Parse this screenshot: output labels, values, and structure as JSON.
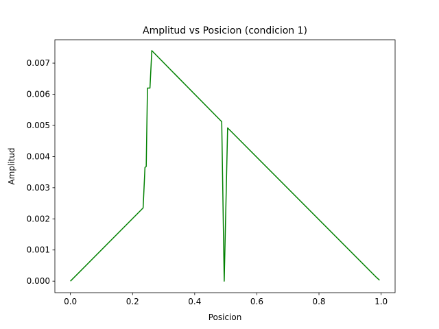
{
  "chart_data": {
    "type": "line",
    "title": "Amplitud vs Posicion  (condicion 1)",
    "xlabel": "Posicion",
    "ylabel": "Amplitud",
    "xlim": [
      -0.05,
      1.045
    ],
    "ylim": [
      -0.00037,
      0.00775
    ],
    "xticks": [
      0.0,
      0.2,
      0.4,
      0.6,
      0.8,
      1.0
    ],
    "xtick_labels": [
      "0.0",
      "0.2",
      "0.4",
      "0.6",
      "0.8",
      "1.0"
    ],
    "yticks": [
      0.0,
      0.001,
      0.002,
      0.003,
      0.004,
      0.005,
      0.006,
      0.007
    ],
    "ytick_labels": [
      "0.000",
      "0.001",
      "0.002",
      "0.003",
      "0.004",
      "0.005",
      "0.006",
      "0.007"
    ],
    "grid": false,
    "series": [
      {
        "color": "#008000",
        "x": [
          0.0,
          0.234,
          0.24,
          0.244,
          0.248,
          0.252,
          0.256,
          0.262,
          0.487,
          0.495,
          0.506,
          0.985,
          0.995
        ],
        "y": [
          0.0,
          0.00235,
          0.00365,
          0.00368,
          0.0062,
          0.0062,
          0.0062,
          0.0074,
          0.00512,
          0.0,
          0.00492,
          0.00012,
          3e-05
        ]
      }
    ]
  }
}
